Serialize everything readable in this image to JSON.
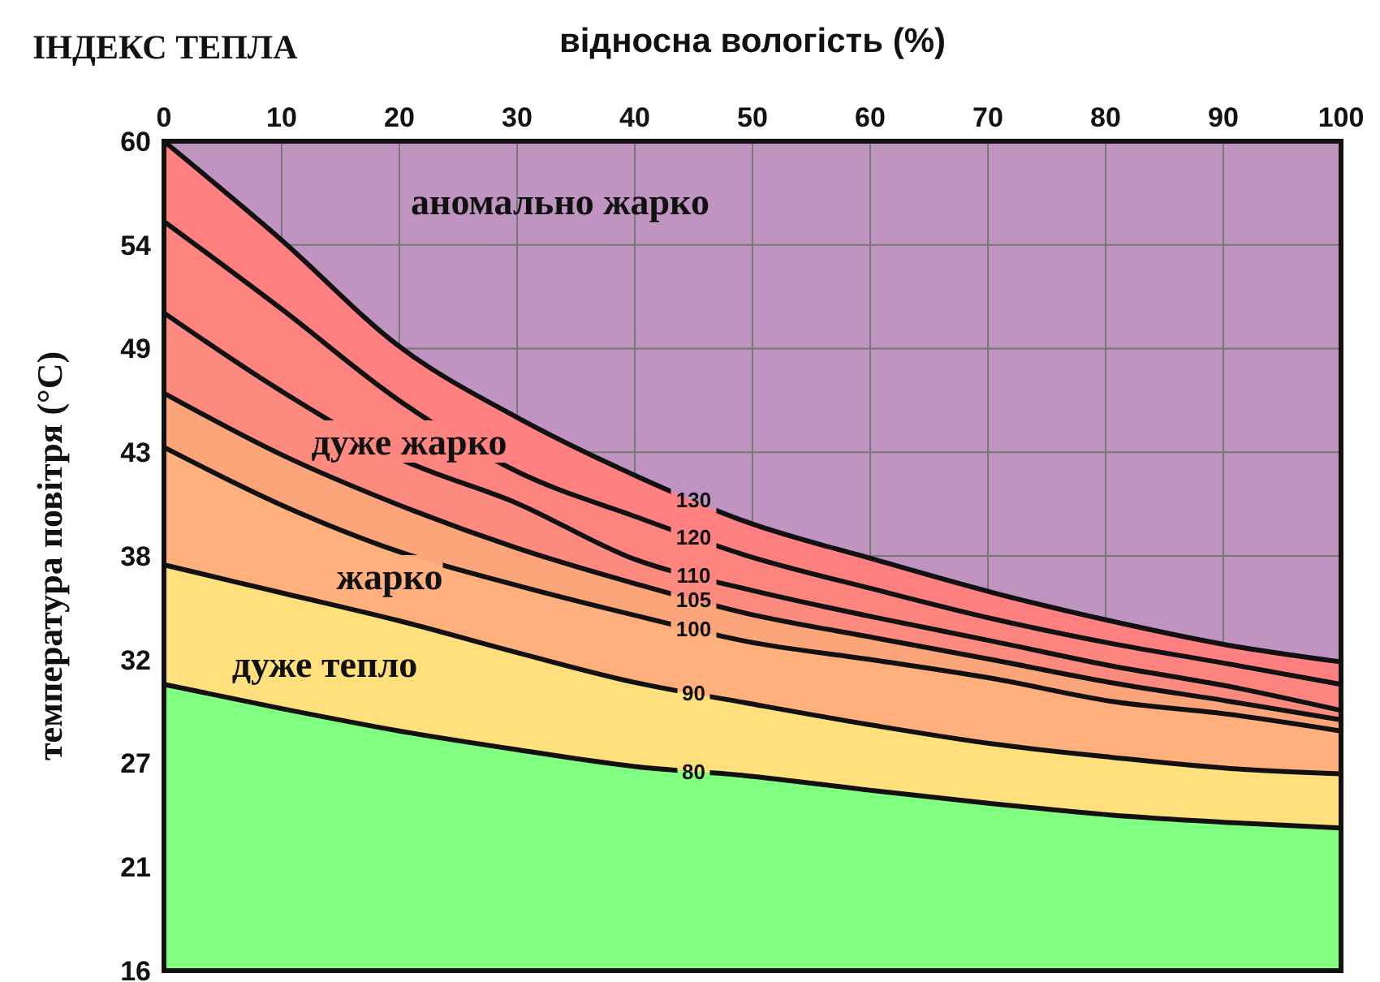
{
  "chart_data": {
    "type": "area",
    "title": "ІНДЕКС ТЕПЛА",
    "xlabel": "відносна вологість (%)",
    "ylabel": "температура повітря (°C)",
    "x": [
      0,
      10,
      20,
      30,
      40,
      49.5,
      60.3,
      70.5,
      80.4,
      90.4,
      100
    ],
    "xlim": [
      0,
      100
    ],
    "xticks": [
      0,
      10,
      20,
      30,
      40,
      50,
      60,
      70,
      80,
      90,
      100
    ],
    "ylim": [
      15.56,
      60
    ],
    "yticks": [
      {
        "value": 15.56,
        "label": "16"
      },
      {
        "value": 21.11,
        "label": "21"
      },
      {
        "value": 26.67,
        "label": "27"
      },
      {
        "value": 32.22,
        "label": "32"
      },
      {
        "value": 37.78,
        "label": "38"
      },
      {
        "value": 43.33,
        "label": "43"
      },
      {
        "value": 48.89,
        "label": "49"
      },
      {
        "value": 54.44,
        "label": "54"
      },
      60
    ],
    "grid": true,
    "series": [
      {
        "name": "130",
        "color": "#ff8080",
        "values": [
          60,
          54.7,
          49.0,
          45.2,
          42.1,
          39.6,
          37.6,
          35.8,
          34.3,
          33.0,
          32.1
        ]
      },
      {
        "name": "120",
        "color": "#fe8480",
        "values": [
          55.7,
          51.0,
          46.1,
          42.3,
          39.9,
          37.8,
          36.0,
          34.4,
          33.1,
          32.0,
          30.9
        ]
      },
      {
        "name": "110",
        "color": "#fd8a7e",
        "values": [
          50.8,
          46.6,
          43.0,
          40.6,
          37.6,
          36.0,
          34.5,
          33.2,
          31.9,
          30.8,
          29.5
        ]
      },
      {
        "name": "105",
        "color": "#fca47a",
        "values": [
          46.5,
          43.2,
          40.5,
          38.2,
          36.3,
          34.7,
          33.4,
          32.2,
          31.0,
          30.0,
          29.0
        ]
      },
      {
        "name": "100",
        "color": "#ffb07c",
        "values": [
          43.6,
          40.5,
          38.0,
          36.2,
          34.6,
          33.2,
          32.2,
          31.2,
          30.0,
          29.3,
          28.4
        ]
      },
      {
        "name": "90",
        "color": "#ffe07c",
        "values": [
          37.3,
          35.8,
          34.3,
          32.6,
          31.0,
          29.9,
          28.7,
          27.7,
          27.0,
          26.4,
          26.1
        ]
      },
      {
        "name": "80",
        "color": "#80ff80",
        "values": [
          30.9,
          29.6,
          28.4,
          27.4,
          26.5,
          26.0,
          25.2,
          24.5,
          23.9,
          23.5,
          23.2
        ]
      }
    ],
    "annotations": [
      "аномально жарко",
      "дуже жарко",
      "жарко",
      "дуже тепло"
    ]
  }
}
